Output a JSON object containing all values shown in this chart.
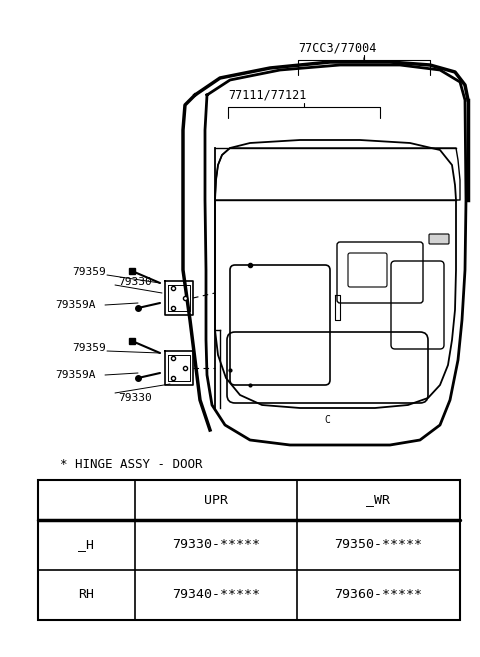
{
  "bg_color": "#ffffff",
  "figsize": [
    4.8,
    6.57
  ],
  "dpi": 100,
  "table_title": "* HINGE ASSY - DOOR",
  "table_header": [
    "",
    "UPR",
    "_WR"
  ],
  "table_rows": [
    [
      "_H",
      "79330-*****",
      "79350-*****"
    ],
    [
      "RH",
      "79340-*****",
      "79360-*****"
    ]
  ],
  "label_77CC3": "77CC3/77004",
  "label_77111": "77111/77121"
}
